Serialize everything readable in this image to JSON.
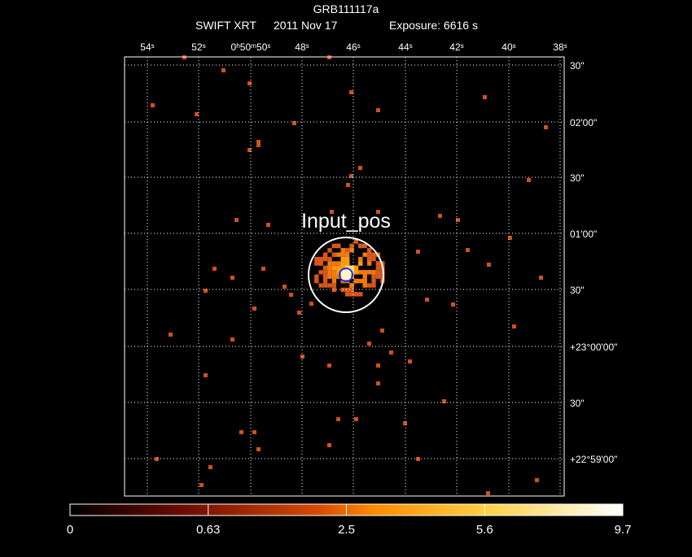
{
  "header": {
    "title": "GRB111117a",
    "instrument": "SWIFT XRT",
    "date": "2011 Nov 17",
    "exposure": "Exposure: 6616 s"
  },
  "ra_ticks": [
    "54ˢ",
    "52ˢ",
    "0ʰ50ᵐ50ˢ",
    "48ˢ",
    "46ˢ",
    "44ˢ",
    "42ˢ",
    "40ˢ",
    "38ˢ"
  ],
  "dec_ticks": [
    "30\"",
    "02'00\"",
    "30\"",
    "01'00\"",
    "30\"",
    "+23°00'00\"",
    "30\"",
    "+22°59'00\""
  ],
  "source_label": "Input_pos",
  "colorbar_ticks": [
    0,
    0.63,
    2.5,
    5.6,
    9.7
  ]
}
